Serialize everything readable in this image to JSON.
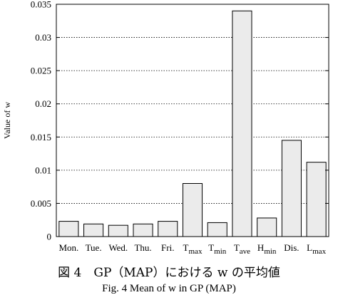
{
  "chart_data": {
    "type": "bar",
    "categories": [
      {
        "main": "Mon.",
        "sub": ""
      },
      {
        "main": "Tue.",
        "sub": ""
      },
      {
        "main": "Wed.",
        "sub": ""
      },
      {
        "main": "Thu.",
        "sub": ""
      },
      {
        "main": "Fri.",
        "sub": ""
      },
      {
        "main": "T",
        "sub": "max"
      },
      {
        "main": "T",
        "sub": "min"
      },
      {
        "main": "T",
        "sub": "ave"
      },
      {
        "main": "H",
        "sub": "min"
      },
      {
        "main": "Dis.",
        "sub": ""
      },
      {
        "main": "L",
        "sub": "max"
      }
    ],
    "values": [
      0.0023,
      0.0019,
      0.0017,
      0.0019,
      0.0023,
      0.008,
      0.0021,
      0.034,
      0.0028,
      0.0145,
      0.0112
    ],
    "ylabel": "Value of w",
    "ylim": [
      0,
      0.035
    ],
    "yticks": [
      "0",
      "0.005",
      "0.01",
      "0.015",
      "0.02",
      "0.025",
      "0.03",
      "0.035"
    ],
    "grid": "horizontal dotted",
    "bar_color": "#ebebeb",
    "bar_edge_color": "#000000"
  },
  "caption": {
    "jp": "図 4　GP（MAP）における w の平均値",
    "en": "Fig. 4    Mean of w in GP (MAP)"
  }
}
